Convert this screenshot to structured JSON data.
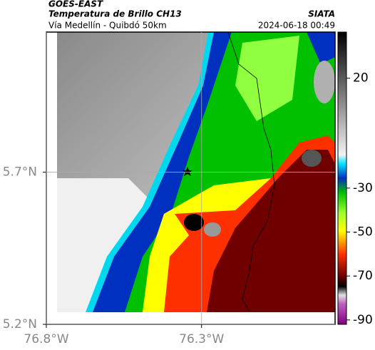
{
  "header": {
    "source": "GOES-EAST",
    "title": "Temperatura de Brillo CH13",
    "agency": "SIATA",
    "subtitle": "Vía Medellín - Quibdó 50km",
    "timestamp": "2024-06-18 00:49"
  },
  "map": {
    "ylim": [
      5.2,
      6.16
    ],
    "xlim": [
      -76.8,
      -75.87
    ],
    "yticks": [
      {
        "value": 5.7,
        "label": "5.7°N"
      },
      {
        "value": 5.2,
        "label": "5.2°N"
      }
    ],
    "xticks": [
      {
        "value": -76.8,
        "label": "76.8°W"
      },
      {
        "value": -76.3,
        "label": "76.3°W"
      }
    ]
  },
  "colorbar": {
    "lim": [
      -92,
      41
    ],
    "ticks": [
      20,
      -30,
      -50,
      -70,
      -90
    ]
  }
}
